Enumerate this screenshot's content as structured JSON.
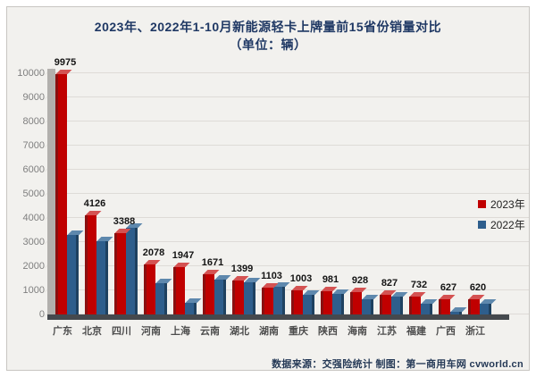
{
  "title": {
    "line1": "2023年、2022年1-10月新能源轻卡上牌量前15省份销量对比",
    "line2": "（单位：辆）"
  },
  "legend": {
    "items": [
      {
        "label": "2023年",
        "color": "#C00000"
      },
      {
        "label": "2022年",
        "color": "#2E5E8C"
      }
    ]
  },
  "source": "数据来源：交强险统计 制图：第一商用车网 cvworld.cn",
  "colors": {
    "bar_2023": "#C00000",
    "bar_2022": "#2E5E8C",
    "title_text": "#1F3864",
    "axis_labels": "#7f7f7f",
    "plot_background": "#f2f1ee"
  },
  "chart_data": {
    "type": "bar",
    "title": "2023年、2022年1-10月新能源轻卡上牌量前15省份销量对比（单位：辆）",
    "categories": [
      "广东",
      "北京",
      "四川",
      "河南",
      "上海",
      "云南",
      "湖北",
      "湖南",
      "重庆",
      "陕西",
      "海南",
      "江苏",
      "福建",
      "广西",
      "浙江"
    ],
    "series": [
      {
        "name": "2023年",
        "color": "#C00000",
        "values": [
          9975,
          4126,
          3388,
          2078,
          1947,
          1671,
          1399,
          1103,
          1003,
          981,
          928,
          827,
          732,
          627,
          620
        ],
        "data_labels_shown": true
      },
      {
        "name": "2022年",
        "color": "#2E5E8C",
        "values": [
          3300,
          3050,
          3600,
          1300,
          500,
          1450,
          1350,
          1150,
          800,
          870,
          630,
          740,
          430,
          110,
          430
        ],
        "data_labels_shown": false,
        "estimated": true
      }
    ],
    "xlabel": "",
    "ylabel": "",
    "ylim": [
      0,
      10000
    ],
    "ytick_step": 1000,
    "grid": true,
    "legend_position": "right",
    "style": "3d-clustered-column"
  }
}
